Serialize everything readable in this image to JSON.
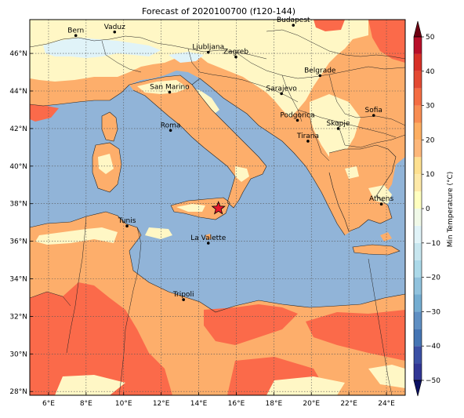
{
  "title": "Forecast of 2020100700 (f120-144)",
  "lon_ticks": [
    "6°E",
    "8°E",
    "10°E",
    "12°E",
    "14°E",
    "16°E",
    "18°E",
    "20°E",
    "22°E",
    "24°E"
  ],
  "lat_ticks": [
    "28°N",
    "30°N",
    "32°N",
    "34°N",
    "36°N",
    "38°N",
    "40°N",
    "42°N",
    "44°N",
    "46°N"
  ],
  "lon_values": [
    6,
    8,
    10,
    12,
    14,
    16,
    18,
    20,
    22,
    24
  ],
  "lat_values": [
    28,
    30,
    32,
    34,
    36,
    38,
    40,
    42,
    44,
    46
  ],
  "extent": {
    "lon": [
      5,
      25
    ],
    "lat": [
      27.8,
      47.8
    ]
  },
  "cities": [
    {
      "name": "Bern",
      "lon": 7.45,
      "lat": 46.95
    },
    {
      "name": "Vaduz",
      "lon": 9.52,
      "lat": 47.14
    },
    {
      "name": "Budapest",
      "lon": 19.04,
      "lat": 47.5
    },
    {
      "name": "Ljubljana",
      "lon": 14.51,
      "lat": 46.06
    },
    {
      "name": "Zagreb",
      "lon": 15.98,
      "lat": 45.81
    },
    {
      "name": "Belgrade",
      "lon": 20.46,
      "lat": 44.82
    },
    {
      "name": "San Marino",
      "lon": 12.45,
      "lat": 43.94
    },
    {
      "name": "Sarajevo",
      "lon": 18.41,
      "lat": 43.86
    },
    {
      "name": "Sofia",
      "lon": 23.32,
      "lat": 42.7
    },
    {
      "name": "Podgorica",
      "lon": 19.26,
      "lat": 42.44
    },
    {
      "name": "Skopje",
      "lon": 21.43,
      "lat": 42.0
    },
    {
      "name": "Roma",
      "lon": 12.5,
      "lat": 41.9
    },
    {
      "name": "Tirana",
      "lon": 19.82,
      "lat": 41.33
    },
    {
      "name": "Athens",
      "lon": 23.73,
      "lat": 37.98
    },
    {
      "name": "Tunis",
      "lon": 10.18,
      "lat": 36.81
    },
    {
      "name": "La Valette",
      "lon": 14.51,
      "lat": 35.9
    },
    {
      "name": "Tripoli",
      "lon": 13.19,
      "lat": 32.89
    }
  ],
  "marker": {
    "lon": 15.05,
    "lat": 37.75,
    "color": "#e8132a",
    "icon": "star-icon"
  },
  "colorbar": {
    "label": "Min Temperature (°C)",
    "ticks": [
      "50",
      "40",
      "30",
      "20",
      "10",
      "0",
      "−10",
      "−20",
      "−30",
      "−40",
      "−50"
    ],
    "tick_values": [
      50,
      40,
      30,
      20,
      10,
      0,
      -10,
      -20,
      -30,
      -40,
      -50
    ],
    "levels": [
      -50,
      -45,
      -40,
      -35,
      -30,
      -25,
      -20,
      -15,
      -10,
      -5,
      0,
      5,
      10,
      15,
      20,
      25,
      30,
      35,
      40,
      45,
      50
    ],
    "colors": [
      "#313695",
      "#3b50a5",
      "#4575b4",
      "#5f8fc3",
      "#74add1",
      "#90c2dd",
      "#abd9e9",
      "#c7e6ef",
      "#e0f3f8",
      "#f0f9e8",
      "#ffffbf",
      "#fee9a8",
      "#fee090",
      "#fdb77a",
      "#fdae61",
      "#f88d52",
      "#f46d43",
      "#e34a33",
      "#d73027",
      "#b8102a",
      "#a50026"
    ],
    "under_color": "#0b1062",
    "over_color": "#6e0012"
  },
  "field_colors": {
    "sea": "#91b4d8",
    "land_warm": "#fdae6b",
    "land_hot": "#fb6a4a",
    "land_mild": "#fff7c5",
    "land_cool": "#e0f3f8"
  }
}
